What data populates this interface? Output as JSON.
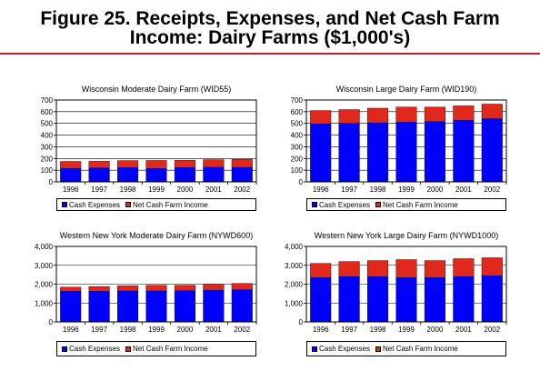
{
  "figure": {
    "title_line1": "Figure 25.  Receipts, Expenses, and Net Cash Farm",
    "title_line2": "Income:  Dairy Farms ($1,000's)"
  },
  "colors": {
    "expenses": "#0000ff",
    "net_income": "#e0281c",
    "rule": "#c0202b"
  },
  "chart_data": [
    {
      "type": "bar",
      "stacked": true,
      "title": "Wisconsin Moderate Dairy Farm (WID55)",
      "categories": [
        "1996",
        "1997",
        "1998",
        "1999",
        "2000",
        "2001",
        "2002"
      ],
      "series": [
        {
          "name": "Cash Expenses",
          "values": [
            115,
            118,
            122,
            115,
            122,
            125,
            124
          ]
        },
        {
          "name": "Net Cash Farm Income",
          "values": [
            60,
            58,
            60,
            68,
            62,
            65,
            68
          ]
        }
      ],
      "ylim": [
        0,
        700
      ],
      "yticks": [
        "0",
        "100",
        "200",
        "300",
        "400",
        "500",
        "600",
        "700"
      ],
      "legend": "bottom"
    },
    {
      "type": "bar",
      "stacked": true,
      "title": "Wisconsin Large Dairy Farm (WID190)",
      "categories": [
        "1996",
        "1997",
        "1998",
        "1999",
        "2000",
        "2001",
        "2002"
      ],
      "series": [
        {
          "name": "Cash Expenses",
          "values": [
            495,
            500,
            505,
            510,
            515,
            525,
            540
          ]
        },
        {
          "name": "Net Cash Farm Income",
          "values": [
            115,
            118,
            125,
            130,
            125,
            125,
            125
          ]
        }
      ],
      "ylim": [
        0,
        700
      ],
      "yticks": [
        "0",
        "100",
        "200",
        "300",
        "400",
        "500",
        "600",
        "700"
      ],
      "legend": "bottom"
    },
    {
      "type": "bar",
      "stacked": true,
      "title": "Western New York Moderate Dairy Farm (NYWD600)",
      "categories": [
        "1996",
        "1997",
        "1998",
        "1999",
        "2000",
        "2001",
        "2002"
      ],
      "series": [
        {
          "name": "Cash Expenses",
          "values": [
            1620,
            1620,
            1640,
            1640,
            1650,
            1680,
            1700
          ]
        },
        {
          "name": "Net Cash Farm Income",
          "values": [
            220,
            250,
            270,
            300,
            290,
            310,
            340
          ]
        }
      ],
      "ylim": [
        0,
        4000
      ],
      "yticks": [
        "0",
        "1,000",
        "2,000",
        "3,000",
        "4,000"
      ],
      "legend": "bottom"
    },
    {
      "type": "bar",
      "stacked": true,
      "title": "Western New York Large Dairy Farm (NYWD1000)",
      "categories": [
        "1996",
        "1997",
        "1998",
        "1999",
        "2000",
        "2001",
        "2002"
      ],
      "series": [
        {
          "name": "Cash Expenses",
          "values": [
            2350,
            2400,
            2400,
            2350,
            2350,
            2400,
            2450
          ]
        },
        {
          "name": "Net Cash Farm Income",
          "values": [
            750,
            800,
            850,
            950,
            900,
            950,
            950
          ]
        }
      ],
      "ylim": [
        0,
        4000
      ],
      "yticks": [
        "0",
        "1,000",
        "2,000",
        "3,000",
        "4,000"
      ],
      "legend": "bottom"
    }
  ]
}
